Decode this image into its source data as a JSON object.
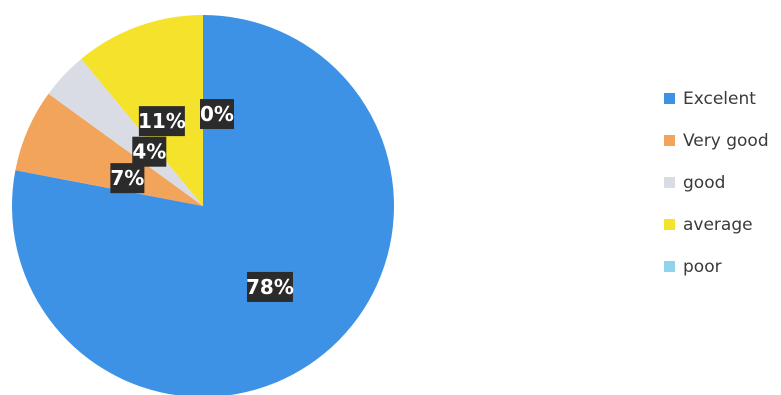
{
  "chart_data": {
    "type": "pie",
    "title": "",
    "categories": [
      "Excelent",
      "Very good",
      "good",
      "average",
      "poor"
    ],
    "values": [
      78,
      7,
      4,
      11,
      0
    ],
    "data_labels": [
      "78%",
      "7%",
      "4%",
      "11%",
      "0%"
    ],
    "colors": [
      "#3d92e6",
      "#f1a45a",
      "#d9dce4",
      "#f5e22a",
      "#8fd3ef"
    ],
    "legend_position": "right"
  }
}
